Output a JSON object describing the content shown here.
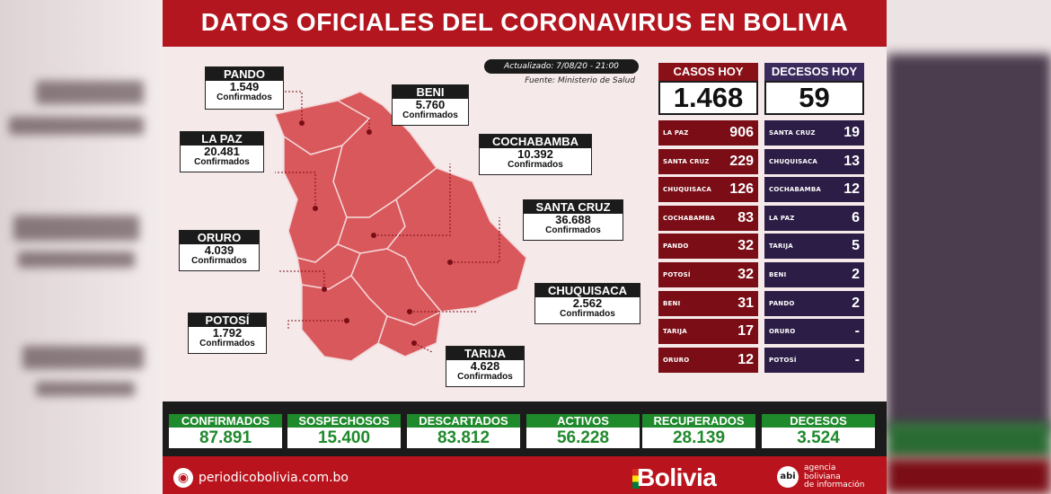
{
  "title": "DATOS OFICIALES DEL CORONAVIRUS EN BOLIVIA",
  "updated": "Actualizado: 7/08/20 - 21:00",
  "source": "Fuente: Ministerio de Salud",
  "confirmed_label": "Confirmados",
  "departments": [
    {
      "name": "PANDO",
      "value": "1.549"
    },
    {
      "name": "BENI",
      "value": "5.760"
    },
    {
      "name": "LA PAZ",
      "value": "20.481"
    },
    {
      "name": "COCHABAMBA",
      "value": "10.392"
    },
    {
      "name": "SANTA CRUZ",
      "value": "36.688"
    },
    {
      "name": "ORURO",
      "value": "4.039"
    },
    {
      "name": "CHUQUISACA",
      "value": "2.562"
    },
    {
      "name": "POTOSÍ",
      "value": "1.792"
    },
    {
      "name": "TARIJA",
      "value": "4.628"
    }
  ],
  "cases_today": {
    "label": "CASOS HOY",
    "total": "1.468",
    "rows": [
      {
        "name": "LA PAZ",
        "value": "906"
      },
      {
        "name": "SANTA CRUZ",
        "value": "229"
      },
      {
        "name": "CHUQUISACA",
        "value": "126"
      },
      {
        "name": "COCHABAMBA",
        "value": "83"
      },
      {
        "name": "PANDO",
        "value": "32"
      },
      {
        "name": "POTOSÍ",
        "value": "32"
      },
      {
        "name": "BENI",
        "value": "31"
      },
      {
        "name": "TARIJA",
        "value": "17"
      },
      {
        "name": "ORURO",
        "value": "12"
      }
    ]
  },
  "deaths_today": {
    "label": "DECESOS HOY",
    "total": "59",
    "rows": [
      {
        "name": "SANTA CRUZ",
        "value": "19"
      },
      {
        "name": "CHUQUISACA",
        "value": "13"
      },
      {
        "name": "COCHABAMBA",
        "value": "12"
      },
      {
        "name": "LA PAZ",
        "value": "6"
      },
      {
        "name": "TARIJA",
        "value": "5"
      },
      {
        "name": "BENI",
        "value": "2"
      },
      {
        "name": "PANDO",
        "value": "2"
      },
      {
        "name": "ORURO",
        "value": "-"
      },
      {
        "name": "POTOSÍ",
        "value": "-"
      }
    ]
  },
  "summary": [
    {
      "label": "CONFIRMADOS",
      "value": "87.891"
    },
    {
      "label": "SOSPECHOSOS",
      "value": "15.400"
    },
    {
      "label": "DESCARTADOS",
      "value": "83.812"
    },
    {
      "label": "ACTIVOS",
      "value": "56.228"
    },
    {
      "label": "RECUPERADOS",
      "value": "28.139"
    },
    {
      "label": "DECESOS",
      "value": "3.524"
    }
  ],
  "footer": {
    "website": "periodicobolivia.com.bo",
    "brand": "Bolivia",
    "abi_logo": "abi",
    "agency_lines": [
      "agencia",
      "boliviana",
      "de información"
    ]
  },
  "colors": {
    "header_red": "#b3161f",
    "cases_red": "#7a0d15",
    "deaths_purple": "#2b1d46",
    "summary_green": "#1f8a2c",
    "map_fill": "#d9585c"
  }
}
